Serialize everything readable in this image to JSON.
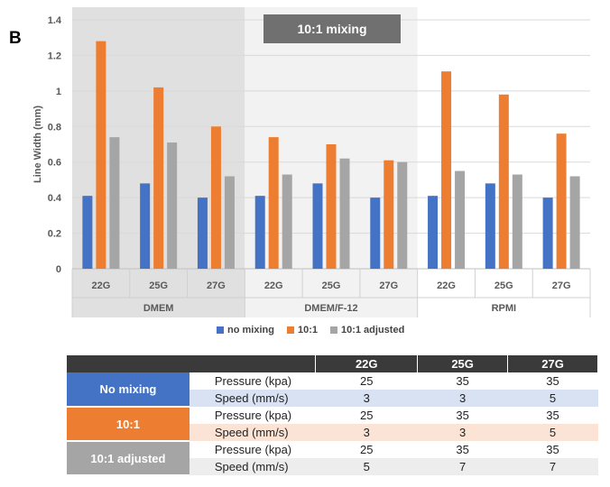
{
  "panel_label": "B",
  "colors": {
    "no_mixing": "#4472c4",
    "ratio_10_1": "#ed7d31",
    "ratio_10_1_adjusted": "#a5a5a5",
    "dmem_bg": "#e0e0e0",
    "dmemf12_bg": "#f2f2f2",
    "banner_bg": "#707070"
  },
  "chart_data": {
    "type": "bar",
    "title": "",
    "banner": "10:1 mixing",
    "ylabel": "Line Width (mm)",
    "ylim": [
      0,
      1.4
    ],
    "yticks": [
      "0",
      "0.2",
      "0.4",
      "0.6",
      "0.8",
      "1",
      "1.2",
      "1.4"
    ],
    "groups": [
      "DMEM",
      "DMEM/F-12",
      "RPMI"
    ],
    "categories": [
      "22G",
      "25G",
      "27G",
      "22G",
      "25G",
      "27G",
      "22G",
      "25G",
      "27G"
    ],
    "series": [
      {
        "name": "no mixing",
        "values": [
          0.41,
          0.48,
          0.4,
          0.41,
          0.48,
          0.4,
          0.41,
          0.48,
          0.4
        ]
      },
      {
        "name": "10:1",
        "values": [
          1.28,
          1.02,
          0.8,
          0.74,
          0.7,
          0.61,
          1.11,
          0.98,
          0.76
        ]
      },
      {
        "name": "10:1 adjusted",
        "values": [
          0.74,
          0.71,
          0.52,
          0.53,
          0.62,
          0.6,
          0.55,
          0.53,
          0.52
        ]
      }
    ],
    "grid": true,
    "legend": "bottom"
  },
  "table": {
    "headers": [
      "22G",
      "25G",
      "27G"
    ],
    "groups": [
      {
        "name": "No mixing",
        "rows": [
          {
            "label": "Pressure (kpa)",
            "values": [
              "25",
              "35",
              "35"
            ]
          },
          {
            "label": "Speed (mm/s)",
            "values": [
              "3",
              "3",
              "5"
            ]
          }
        ]
      },
      {
        "name": "10:1",
        "rows": [
          {
            "label": "Pressure (kpa)",
            "values": [
              "25",
              "35",
              "35"
            ]
          },
          {
            "label": "Speed (mm/s)",
            "values": [
              "3",
              "3",
              "5"
            ]
          }
        ]
      },
      {
        "name": "10:1 adjusted",
        "rows": [
          {
            "label": "Pressure (kpa)",
            "values": [
              "25",
              "35",
              "35"
            ]
          },
          {
            "label": "Speed (mm/s)",
            "values": [
              "5",
              "7",
              "7"
            ]
          }
        ]
      }
    ]
  }
}
